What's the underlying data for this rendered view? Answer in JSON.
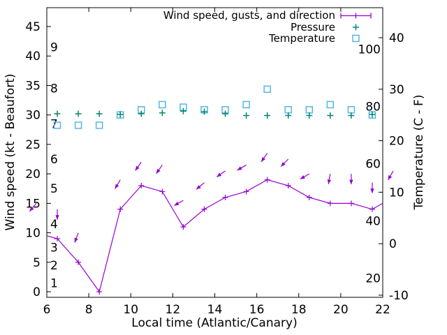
{
  "background_color": "#ffffff",
  "chart_data": {
    "type": "line",
    "title": "",
    "x_axis": {
      "label": "Local time (Atlantic/Canary)",
      "min": 6,
      "max": 22,
      "ticks": [
        6,
        8,
        10,
        12,
        14,
        16,
        18,
        20,
        22
      ]
    },
    "y_left_axis": {
      "label": "Wind speed (kt - Beaufort)",
      "ticks_kt": [
        0,
        5,
        10,
        15,
        20,
        25,
        30,
        35,
        40,
        45
      ],
      "beaufort_inner_labels": [
        {
          "label": "1",
          "kt": 1.5
        },
        {
          "label": "2",
          "kt": 4.5
        },
        {
          "label": "3",
          "kt": 7.5
        },
        {
          "label": "4",
          "kt": 11.5
        },
        {
          "label": "5",
          "kt": 17.5
        },
        {
          "label": "6",
          "kt": 22.5
        },
        {
          "label": "7",
          "kt": 28.5
        },
        {
          "label": "8",
          "kt": 34.5
        },
        {
          "label": "9",
          "kt": 41.5
        }
      ]
    },
    "y_right_axis": {
      "label": "Temperature (C - F)",
      "ticks_celsius": [
        -10,
        0,
        10,
        20,
        30,
        40
      ],
      "fahrenheit_inner_labels": [
        20,
        40,
        60,
        80,
        100
      ]
    },
    "legend": {
      "position": "top-right",
      "entries": [
        {
          "label": "Wind speed, gusts, and direction",
          "marker": "line-with-plus",
          "color": "#9400D3"
        },
        {
          "label": "Pressure",
          "marker": "plus",
          "color": "#00886A"
        },
        {
          "label": "Temperature",
          "marker": "open-square",
          "color": "#56B4E9"
        }
      ]
    },
    "series": {
      "wind": {
        "name": "Wind speed, gusts, and direction",
        "color": "#9400D3",
        "time": [
          5.5,
          6.5,
          7.5,
          8.5,
          9.5,
          10.5,
          11.5,
          12.5,
          13.5,
          14.5,
          15.5,
          16.5,
          17.5,
          18.5,
          19.5,
          20.5,
          21.5,
          22.5
        ],
        "speed_kt": [
          10,
          9,
          5,
          0,
          14,
          18,
          17,
          11,
          14,
          16,
          17,
          19,
          18,
          16,
          15,
          15,
          14,
          16
        ],
        "gust_kt": [
          15,
          14,
          10,
          null,
          19,
          22,
          21.5,
          15.5,
          18.5,
          20.5,
          21.5,
          23.5,
          22.5,
          20,
          20,
          20,
          18.5,
          20.5
        ],
        "gust_direction_deg_toward": [
          220,
          180,
          200,
          null,
          210,
          215,
          215,
          240,
          230,
          235,
          240,
          215,
          225,
          240,
          190,
          180,
          180,
          210
        ]
      },
      "pressure": {
        "name": "Pressure",
        "color": "#00886A",
        "time": [
          6.5,
          7.5,
          8.5,
          9.5,
          10.5,
          11.5,
          12.5,
          13.5,
          14.5,
          15.5,
          16.5,
          17.5,
          18.5,
          19.5,
          20.5,
          21.5
        ],
        "plotted_left_axis_units": [
          30.2,
          30.2,
          30.2,
          30.1,
          30.2,
          30.35,
          30.65,
          30.55,
          30.2,
          29.9,
          29.9,
          29.9,
          29.9,
          29.9,
          29.9,
          30.1
        ]
      },
      "temperature": {
        "name": "Temperature",
        "color": "#56B4E9",
        "time": [
          6.5,
          7.5,
          8.5,
          9.5,
          10.5,
          11.5,
          12.5,
          13.5,
          14.5,
          15.5,
          16.5,
          17.5,
          18.5,
          19.5,
          20.5,
          21.5
        ],
        "celsius": [
          23,
          23,
          23,
          25,
          26,
          27,
          26.5,
          26,
          26,
          27,
          30,
          26,
          26,
          27,
          26,
          25
        ]
      }
    }
  }
}
